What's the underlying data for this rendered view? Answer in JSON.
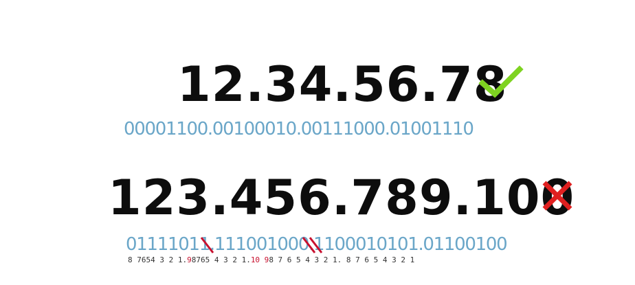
{
  "valid": {
    "address": "12.34.56.78",
    "binary": "00001100.00100010.00111000.01001110",
    "status_icon": "check-icon",
    "status_color": "#7ed321"
  },
  "invalid": {
    "address": "123.456.789.100",
    "binary": "01111011.111001000.1100010101.01100100",
    "status_icon": "cross-icon",
    "status_color": "#e02020",
    "bit_positions": {
      "octet1": "8 7654 3 2 1.",
      "octet2_overflow": "9",
      "octet2": "8765 4 3 2 1.",
      "octet3_overflow": "10 9",
      "octet3": "8 7 6 5 4 3 2 1.",
      "octet4": "8 7 6 5 4 3 2 1"
    }
  },
  "colors": {
    "binary_text": "#6aa6c8",
    "decimal_text": "#0d0d0d",
    "strike": "#c8102e"
  }
}
